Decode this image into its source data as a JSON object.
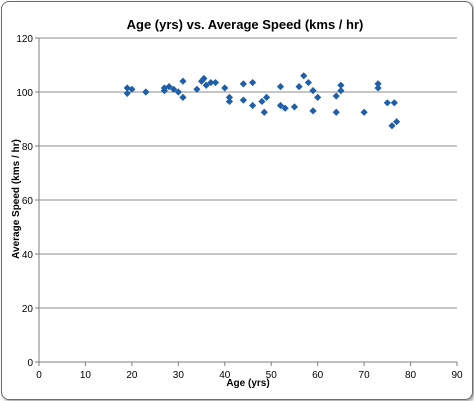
{
  "chart_data": {
    "type": "scatter",
    "title": "Age (yrs) vs. Average Speed (kms / hr)",
    "xlabel": "Age (yrs)",
    "ylabel": "Average Speed (kms / hr)",
    "xlim": [
      0,
      90
    ],
    "ylim": [
      0,
      120
    ],
    "x_ticks": [
      "0",
      "10",
      "20",
      "30",
      "40",
      "50",
      "60",
      "70",
      "80",
      "90"
    ],
    "y_ticks": [
      "0",
      "20",
      "40",
      "60",
      "80",
      "100",
      "120"
    ],
    "grid": "horizontal",
    "legend": "none",
    "marker": "diamond",
    "series": [
      {
        "color": "#1F5FAA",
        "points": [
          [
            19,
            101.5
          ],
          [
            19,
            99.5
          ],
          [
            20,
            101
          ],
          [
            23,
            100
          ],
          [
            27,
            100.5
          ],
          [
            27,
            101.5
          ],
          [
            28,
            102
          ],
          [
            29,
            101
          ],
          [
            30,
            100
          ],
          [
            31,
            104
          ],
          [
            31,
            98
          ],
          [
            34,
            101
          ],
          [
            35,
            104
          ],
          [
            35.5,
            105
          ],
          [
            36,
            102.5
          ],
          [
            37,
            103.5
          ],
          [
            38,
            103.5
          ],
          [
            40,
            101.5
          ],
          [
            41,
            98
          ],
          [
            41,
            96.5
          ],
          [
            44,
            103
          ],
          [
            44,
            97
          ],
          [
            46,
            103.5
          ],
          [
            46,
            95
          ],
          [
            48,
            96.5
          ],
          [
            48.5,
            92.5
          ],
          [
            49,
            98
          ],
          [
            52,
            102
          ],
          [
            52,
            95
          ],
          [
            53,
            94
          ],
          [
            55,
            94.5
          ],
          [
            56,
            102
          ],
          [
            57,
            106
          ],
          [
            58,
            103.5
          ],
          [
            59,
            100.5
          ],
          [
            59,
            93
          ],
          [
            60,
            98
          ],
          [
            64,
            98.5
          ],
          [
            64,
            92.5
          ],
          [
            65,
            100.5
          ],
          [
            65,
            102.5
          ],
          [
            70,
            92.5
          ],
          [
            73,
            103
          ],
          [
            73,
            101.5
          ],
          [
            75,
            96
          ],
          [
            76,
            87.5
          ],
          [
            76.5,
            96
          ],
          [
            77,
            89
          ]
        ]
      }
    ]
  }
}
